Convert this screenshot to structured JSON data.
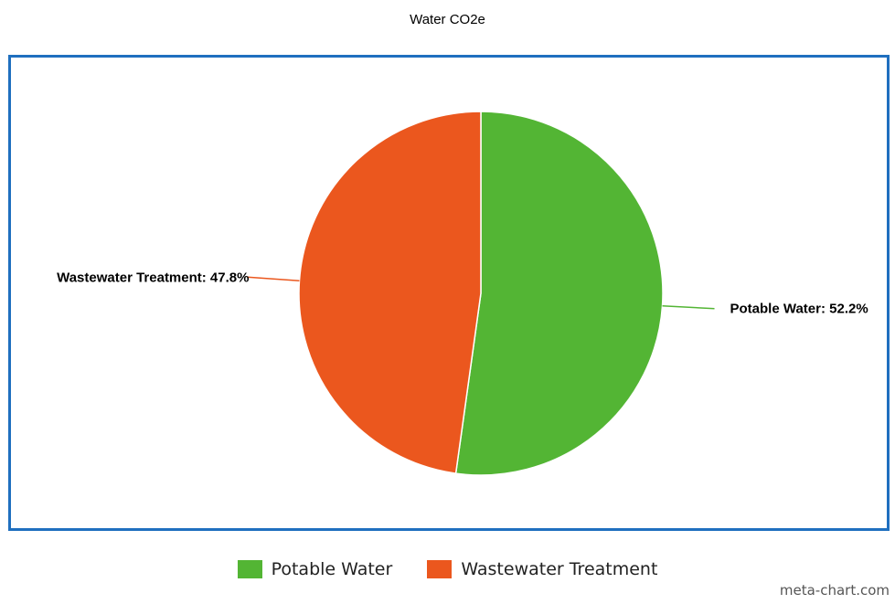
{
  "chart_data": {
    "type": "pie",
    "title": "Water CO2e",
    "slices": [
      {
        "name": "Potable Water",
        "value": 52.2,
        "color": "#53b534",
        "label": "Potable Water: 52.2%"
      },
      {
        "name": "Wastewater Treatment",
        "value": 47.8,
        "color": "#eb571e",
        "label": "Wastewater Treatment: 47.8%"
      }
    ],
    "legend_position": "bottom"
  },
  "colors": {
    "frame": "#1f6fbf"
  },
  "legend": {
    "items": [
      {
        "label": "Potable Water",
        "color": "#53b534"
      },
      {
        "label": "Wastewater Treatment",
        "color": "#eb571e"
      }
    ]
  },
  "watermark": "meta-chart.com"
}
